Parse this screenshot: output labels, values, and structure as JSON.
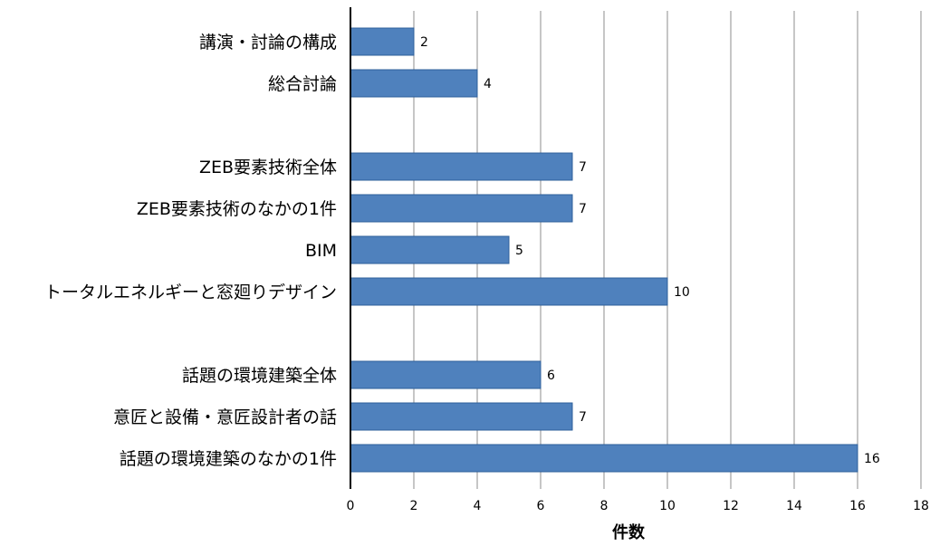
{
  "chart_data": {
    "type": "bar",
    "orientation": "horizontal",
    "categories": [
      "講演・討論の構成",
      "総合討論",
      "",
      "ZEB要素技術全体",
      "ZEB要素技術のなかの1件",
      "BIM",
      "トータルエネルギーと窓廻りデザイン",
      "",
      "話題の環境建築全体",
      "意匠と設備・意匠設計者の話",
      "話題の環境建築のなかの1件"
    ],
    "values": [
      2,
      4,
      null,
      7,
      7,
      5,
      10,
      null,
      6,
      7,
      16
    ],
    "data_labels": [
      "2",
      "4",
      "",
      "7",
      "7",
      "5",
      "10",
      "",
      "6",
      "7",
      "16"
    ],
    "title": "",
    "xlabel": "件数",
    "ylabel": "",
    "xlim": [
      0,
      18
    ],
    "xticks": [
      0,
      2,
      4,
      6,
      8,
      10,
      12,
      14,
      16,
      18
    ],
    "grid": "vertical",
    "legend": "none",
    "bar_color": "#4f81bd",
    "bar_edge_color": "#2e5f9a"
  }
}
